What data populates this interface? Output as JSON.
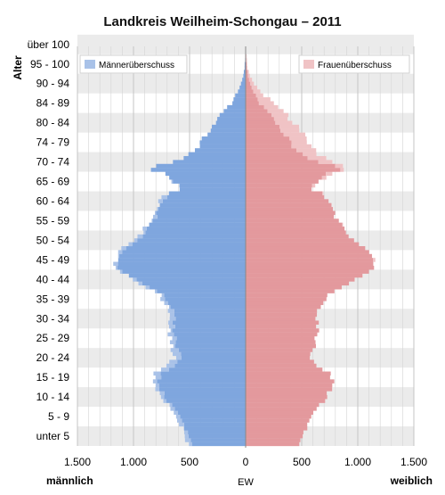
{
  "chart_data": {
    "type": "bar",
    "title": "Landkreis Weilheim-Schongau – 2011",
    "ylabel": "Alter",
    "xlabel": "EW",
    "x_left_label": "männlich",
    "x_right_label": "weiblich",
    "xlim": [
      -1500,
      1500
    ],
    "x_ticks": [
      {
        "value": -1500,
        "label": "1.500"
      },
      {
        "value": -1000,
        "label": "1.000"
      },
      {
        "value": -500,
        "label": "500"
      },
      {
        "value": 0,
        "label": "0"
      },
      {
        "value": 500,
        "label": "500"
      },
      {
        "value": 1000,
        "label": "1.000"
      },
      {
        "value": 1500,
        "label": "1.500"
      }
    ],
    "age_groups": [
      "unter 5",
      "5 - 9",
      "10 - 14",
      "15 - 19",
      "20 - 24",
      "25 - 29",
      "30 - 34",
      "35 - 39",
      "40 - 44",
      "45 - 49",
      "50 - 54",
      "55 - 59",
      "60 - 64",
      "65 - 69",
      "70 - 74",
      "74 - 79",
      "80 - 84",
      "84 - 89",
      "90 - 94",
      "95 - 100",
      "über 100"
    ],
    "legend": {
      "male_surplus": "Männerüberschuss",
      "female_surplus": "Frauenüberschuss"
    },
    "colors": {
      "male": "#7fa6de",
      "male_surplus": "#a9c2e8",
      "female": "#e3999d",
      "female_surplus": "#f0c3c5",
      "band": "#ebebeb",
      "grid": "#d4d4d4"
    },
    "anchors": {
      "male": [
        [
          0,
          520
        ],
        [
          4,
          560
        ],
        [
          8,
          640
        ],
        [
          11,
          730
        ],
        [
          14,
          790
        ],
        [
          16,
          830
        ],
        [
          18,
          800
        ],
        [
          20,
          690
        ],
        [
          22,
          640
        ],
        [
          24,
          650
        ],
        [
          27,
          670
        ],
        [
          30,
          690
        ],
        [
          33,
          680
        ],
        [
          35,
          700
        ],
        [
          38,
          760
        ],
        [
          40,
          880
        ],
        [
          42,
          1000
        ],
        [
          44,
          1120
        ],
        [
          46,
          1170
        ],
        [
          48,
          1140
        ],
        [
          50,
          1090
        ],
        [
          52,
          1000
        ],
        [
          54,
          930
        ],
        [
          56,
          870
        ],
        [
          58,
          820
        ],
        [
          60,
          790
        ],
        [
          62,
          760
        ],
        [
          64,
          700
        ],
        [
          65,
          580
        ],
        [
          67,
          640
        ],
        [
          69,
          720
        ],
        [
          70,
          840
        ],
        [
          71,
          800
        ],
        [
          72,
          650
        ],
        [
          74,
          500
        ],
        [
          76,
          420
        ],
        [
          78,
          370
        ],
        [
          80,
          330
        ],
        [
          82,
          270
        ],
        [
          84,
          220
        ],
        [
          86,
          160
        ],
        [
          88,
          110
        ],
        [
          90,
          70
        ],
        [
          92,
          40
        ],
        [
          94,
          20
        ],
        [
          96,
          10
        ],
        [
          99,
          3
        ],
        [
          101,
          1
        ]
      ],
      "female": [
        [
          0,
          500
        ],
        [
          4,
          530
        ],
        [
          8,
          600
        ],
        [
          11,
          690
        ],
        [
          14,
          760
        ],
        [
          16,
          770
        ],
        [
          18,
          740
        ],
        [
          20,
          630
        ],
        [
          22,
          590
        ],
        [
          24,
          600
        ],
        [
          27,
          630
        ],
        [
          30,
          650
        ],
        [
          33,
          640
        ],
        [
          35,
          660
        ],
        [
          38,
          730
        ],
        [
          40,
          860
        ],
        [
          42,
          990
        ],
        [
          44,
          1100
        ],
        [
          46,
          1150
        ],
        [
          48,
          1120
        ],
        [
          50,
          1060
        ],
        [
          52,
          970
        ],
        [
          54,
          900
        ],
        [
          56,
          850
        ],
        [
          58,
          800
        ],
        [
          60,
          760
        ],
        [
          62,
          740
        ],
        [
          64,
          680
        ],
        [
          65,
          580
        ],
        [
          67,
          660
        ],
        [
          69,
          760
        ],
        [
          70,
          870
        ],
        [
          71,
          860
        ],
        [
          72,
          760
        ],
        [
          74,
          640
        ],
        [
          76,
          580
        ],
        [
          78,
          540
        ],
        [
          80,
          490
        ],
        [
          82,
          430
        ],
        [
          84,
          360
        ],
        [
          86,
          290
        ],
        [
          88,
          200
        ],
        [
          90,
          130
        ],
        [
          92,
          75
        ],
        [
          94,
          38
        ],
        [
          96,
          18
        ],
        [
          99,
          6
        ],
        [
          101,
          2
        ]
      ]
    }
  }
}
